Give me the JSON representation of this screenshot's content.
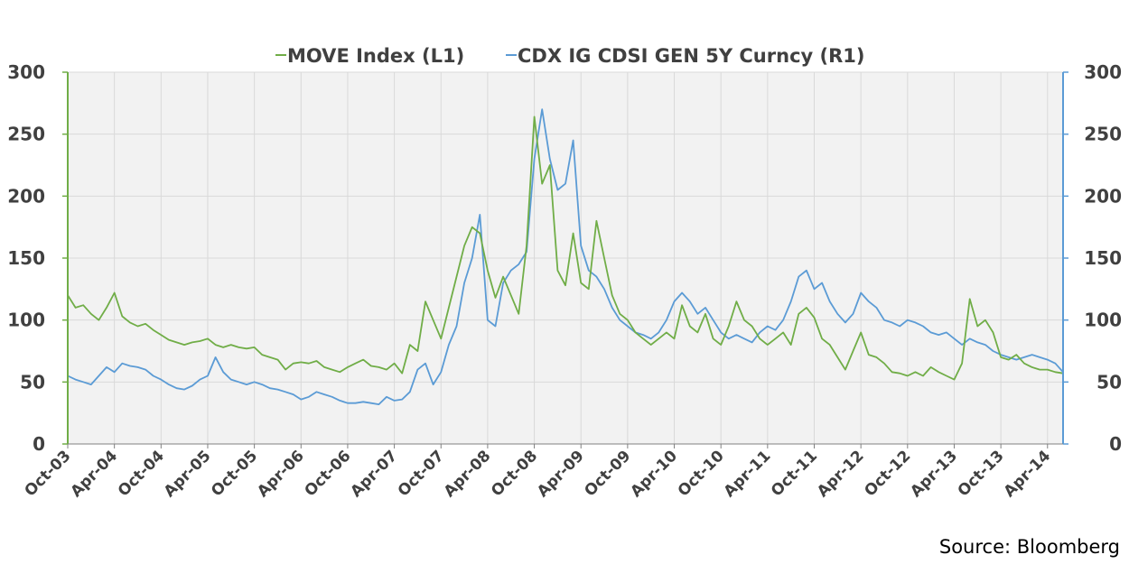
{
  "chart_data": {
    "type": "line",
    "title": "",
    "source": "Source: Bloomberg",
    "x_tick_labels": [
      "Oct-03",
      "Apr-04",
      "Oct-04",
      "Apr-05",
      "Oct-05",
      "Apr-06",
      "Oct-06",
      "Apr-07",
      "Oct-07",
      "Apr-08",
      "Oct-08",
      "Apr-09",
      "Oct-09",
      "Apr-10",
      "Oct-10",
      "Apr-11",
      "Oct-11",
      "Apr-12",
      "Oct-12",
      "Apr-13",
      "Oct-13",
      "Apr-14"
    ],
    "x_range": [
      "Oct-03",
      "Jun-14"
    ],
    "y_left": {
      "label": "",
      "lim": [
        0,
        300
      ],
      "ticks": [
        0,
        50,
        100,
        150,
        200,
        250,
        300
      ],
      "color": "#70ad47"
    },
    "y_right": {
      "label": "",
      "lim": [
        0,
        300
      ],
      "ticks": [
        0,
        50,
        100,
        150,
        200,
        250,
        300
      ],
      "color": "#5b9bd5"
    },
    "grid": true,
    "legend_position": "top-center",
    "colors": {
      "move": "#70ad47",
      "cdx": "#5b9bd5",
      "plot_bg": "#f2f2f2",
      "grid": "#d9d9d9"
    },
    "series": [
      {
        "name": "MOVE Index  (L1)",
        "axis": "left",
        "points": [
          [
            "Oct-03",
            120
          ],
          [
            "Nov-03",
            110
          ],
          [
            "Dec-03",
            112
          ],
          [
            "Jan-04",
            105
          ],
          [
            "Feb-04",
            100
          ],
          [
            "Mar-04",
            110
          ],
          [
            "Apr-04",
            122
          ],
          [
            "May-04",
            103
          ],
          [
            "Jun-04",
            98
          ],
          [
            "Jul-04",
            95
          ],
          [
            "Aug-04",
            97
          ],
          [
            "Sep-04",
            92
          ],
          [
            "Oct-04",
            88
          ],
          [
            "Nov-04",
            84
          ],
          [
            "Dec-04",
            82
          ],
          [
            "Jan-05",
            80
          ],
          [
            "Feb-05",
            82
          ],
          [
            "Mar-05",
            83
          ],
          [
            "Apr-05",
            85
          ],
          [
            "May-05",
            80
          ],
          [
            "Jun-05",
            78
          ],
          [
            "Jul-05",
            80
          ],
          [
            "Aug-05",
            78
          ],
          [
            "Sep-05",
            77
          ],
          [
            "Oct-05",
            78
          ],
          [
            "Nov-05",
            72
          ],
          [
            "Dec-05",
            70
          ],
          [
            "Jan-06",
            68
          ],
          [
            "Feb-06",
            60
          ],
          [
            "Mar-06",
            65
          ],
          [
            "Apr-06",
            66
          ],
          [
            "May-06",
            65
          ],
          [
            "Jun-06",
            67
          ],
          [
            "Jul-06",
            62
          ],
          [
            "Aug-06",
            60
          ],
          [
            "Sep-06",
            58
          ],
          [
            "Oct-06",
            62
          ],
          [
            "Nov-06",
            65
          ],
          [
            "Dec-06",
            68
          ],
          [
            "Jan-07",
            63
          ],
          [
            "Feb-07",
            62
          ],
          [
            "Mar-07",
            60
          ],
          [
            "Apr-07",
            65
          ],
          [
            "May-07",
            57
          ],
          [
            "Jun-07",
            80
          ],
          [
            "Jul-07",
            75
          ],
          [
            "Aug-07",
            115
          ],
          [
            "Sep-07",
            100
          ],
          [
            "Oct-07",
            85
          ],
          [
            "Nov-07",
            110
          ],
          [
            "Dec-07",
            135
          ],
          [
            "Jan-08",
            160
          ],
          [
            "Feb-08",
            175
          ],
          [
            "Mar-08",
            170
          ],
          [
            "Apr-08",
            140
          ],
          [
            "May-08",
            118
          ],
          [
            "Jun-08",
            135
          ],
          [
            "Jul-08",
            120
          ],
          [
            "Aug-08",
            105
          ],
          [
            "Sep-08",
            160
          ],
          [
            "Oct-08",
            264
          ],
          [
            "Nov-08",
            210
          ],
          [
            "Dec-08",
            225
          ],
          [
            "Jan-09",
            140
          ],
          [
            "Feb-09",
            128
          ],
          [
            "Mar-09",
            170
          ],
          [
            "Apr-09",
            130
          ],
          [
            "May-09",
            125
          ],
          [
            "Jun-09",
            180
          ],
          [
            "Jul-09",
            150
          ],
          [
            "Aug-09",
            120
          ],
          [
            "Sep-09",
            105
          ],
          [
            "Oct-09",
            100
          ],
          [
            "Nov-09",
            90
          ],
          [
            "Dec-09",
            85
          ],
          [
            "Jan-10",
            80
          ],
          [
            "Feb-10",
            85
          ],
          [
            "Mar-10",
            90
          ],
          [
            "Apr-10",
            85
          ],
          [
            "May-10",
            112
          ],
          [
            "Jun-10",
            95
          ],
          [
            "Jul-10",
            90
          ],
          [
            "Aug-10",
            105
          ],
          [
            "Sep-10",
            85
          ],
          [
            "Oct-10",
            80
          ],
          [
            "Nov-10",
            95
          ],
          [
            "Dec-10",
            115
          ],
          [
            "Jan-11",
            100
          ],
          [
            "Feb-11",
            95
          ],
          [
            "Mar-11",
            85
          ],
          [
            "Apr-11",
            80
          ],
          [
            "May-11",
            85
          ],
          [
            "Jun-11",
            90
          ],
          [
            "Jul-11",
            80
          ],
          [
            "Aug-11",
            105
          ],
          [
            "Sep-11",
            110
          ],
          [
            "Oct-11",
            102
          ],
          [
            "Nov-11",
            85
          ],
          [
            "Dec-11",
            80
          ],
          [
            "Jan-12",
            70
          ],
          [
            "Feb-12",
            60
          ],
          [
            "Mar-12",
            75
          ],
          [
            "Apr-12",
            90
          ],
          [
            "May-12",
            72
          ],
          [
            "Jun-12",
            70
          ],
          [
            "Jul-12",
            65
          ],
          [
            "Aug-12",
            58
          ],
          [
            "Sep-12",
            57
          ],
          [
            "Oct-12",
            55
          ],
          [
            "Nov-12",
            58
          ],
          [
            "Dec-12",
            55
          ],
          [
            "Jan-13",
            62
          ],
          [
            "Feb-13",
            58
          ],
          [
            "Mar-13",
            55
          ],
          [
            "Apr-13",
            52
          ],
          [
            "May-13",
            65
          ],
          [
            "Jun-13",
            117
          ],
          [
            "Jul-13",
            95
          ],
          [
            "Aug-13",
            100
          ],
          [
            "Sep-13",
            90
          ],
          [
            "Oct-13",
            70
          ],
          [
            "Nov-13",
            68
          ],
          [
            "Dec-13",
            72
          ],
          [
            "Jan-14",
            65
          ],
          [
            "Feb-14",
            62
          ],
          [
            "Mar-14",
            60
          ],
          [
            "Apr-14",
            60
          ],
          [
            "May-14",
            58
          ],
          [
            "Jun-14",
            57
          ]
        ]
      },
      {
        "name": "CDX IG CDSI GEN 5Y Curncy (R1)",
        "axis": "right",
        "points": [
          [
            "Oct-03",
            55
          ],
          [
            "Nov-03",
            52
          ],
          [
            "Dec-03",
            50
          ],
          [
            "Jan-04",
            48
          ],
          [
            "Feb-04",
            55
          ],
          [
            "Mar-04",
            62
          ],
          [
            "Apr-04",
            58
          ],
          [
            "May-04",
            65
          ],
          [
            "Jun-04",
            63
          ],
          [
            "Jul-04",
            62
          ],
          [
            "Aug-04",
            60
          ],
          [
            "Sep-04",
            55
          ],
          [
            "Oct-04",
            52
          ],
          [
            "Nov-04",
            48
          ],
          [
            "Dec-04",
            45
          ],
          [
            "Jan-05",
            44
          ],
          [
            "Feb-05",
            47
          ],
          [
            "Mar-05",
            52
          ],
          [
            "Apr-05",
            55
          ],
          [
            "May-05",
            70
          ],
          [
            "Jun-05",
            58
          ],
          [
            "Jul-05",
            52
          ],
          [
            "Aug-05",
            50
          ],
          [
            "Sep-05",
            48
          ],
          [
            "Oct-05",
            50
          ],
          [
            "Nov-05",
            48
          ],
          [
            "Dec-05",
            45
          ],
          [
            "Jan-06",
            44
          ],
          [
            "Feb-06",
            42
          ],
          [
            "Mar-06",
            40
          ],
          [
            "Apr-06",
            36
          ],
          [
            "May-06",
            38
          ],
          [
            "Jun-06",
            42
          ],
          [
            "Jul-06",
            40
          ],
          [
            "Aug-06",
            38
          ],
          [
            "Sep-06",
            35
          ],
          [
            "Oct-06",
            33
          ],
          [
            "Nov-06",
            33
          ],
          [
            "Dec-06",
            34
          ],
          [
            "Jan-07",
            33
          ],
          [
            "Feb-07",
            32
          ],
          [
            "Mar-07",
            38
          ],
          [
            "Apr-07",
            35
          ],
          [
            "May-07",
            36
          ],
          [
            "Jun-07",
            42
          ],
          [
            "Jul-07",
            60
          ],
          [
            "Aug-07",
            65
          ],
          [
            "Sep-07",
            48
          ],
          [
            "Oct-07",
            58
          ],
          [
            "Nov-07",
            80
          ],
          [
            "Dec-07",
            95
          ],
          [
            "Jan-08",
            130
          ],
          [
            "Feb-08",
            150
          ],
          [
            "Mar-08",
            185
          ],
          [
            "Apr-08",
            100
          ],
          [
            "May-08",
            95
          ],
          [
            "Jun-08",
            130
          ],
          [
            "Jul-08",
            140
          ],
          [
            "Aug-08",
            145
          ],
          [
            "Sep-08",
            155
          ],
          [
            "Oct-08",
            230
          ],
          [
            "Nov-08",
            270
          ],
          [
            "Dec-08",
            230
          ],
          [
            "Jan-09",
            205
          ],
          [
            "Feb-09",
            210
          ],
          [
            "Mar-09",
            245
          ],
          [
            "Apr-09",
            160
          ],
          [
            "May-09",
            140
          ],
          [
            "Jun-09",
            135
          ],
          [
            "Jul-09",
            125
          ],
          [
            "Aug-09",
            110
          ],
          [
            "Sep-09",
            100
          ],
          [
            "Oct-09",
            95
          ],
          [
            "Nov-09",
            90
          ],
          [
            "Dec-09",
            88
          ],
          [
            "Jan-10",
            85
          ],
          [
            "Feb-10",
            90
          ],
          [
            "Mar-10",
            100
          ],
          [
            "Apr-10",
            115
          ],
          [
            "May-10",
            122
          ],
          [
            "Jun-10",
            115
          ],
          [
            "Jul-10",
            105
          ],
          [
            "Aug-10",
            110
          ],
          [
            "Sep-10",
            100
          ],
          [
            "Oct-10",
            90
          ],
          [
            "Nov-10",
            85
          ],
          [
            "Dec-10",
            88
          ],
          [
            "Jan-11",
            85
          ],
          [
            "Feb-11",
            82
          ],
          [
            "Mar-11",
            90
          ],
          [
            "Apr-11",
            95
          ],
          [
            "May-11",
            92
          ],
          [
            "Jun-11",
            100
          ],
          [
            "Jul-11",
            115
          ],
          [
            "Aug-11",
            135
          ],
          [
            "Sep-11",
            140
          ],
          [
            "Oct-11",
            125
          ],
          [
            "Nov-11",
            130
          ],
          [
            "Dec-11",
            115
          ],
          [
            "Jan-12",
            105
          ],
          [
            "Feb-12",
            98
          ],
          [
            "Mar-12",
            105
          ],
          [
            "Apr-12",
            122
          ],
          [
            "May-12",
            115
          ],
          [
            "Jun-12",
            110
          ],
          [
            "Jul-12",
            100
          ],
          [
            "Aug-12",
            98
          ],
          [
            "Sep-12",
            95
          ],
          [
            "Oct-12",
            100
          ],
          [
            "Nov-12",
            98
          ],
          [
            "Dec-12",
            95
          ],
          [
            "Jan-13",
            90
          ],
          [
            "Feb-13",
            88
          ],
          [
            "Mar-13",
            90
          ],
          [
            "Apr-13",
            85
          ],
          [
            "May-13",
            80
          ],
          [
            "Jun-13",
            85
          ],
          [
            "Jul-13",
            82
          ],
          [
            "Aug-13",
            80
          ],
          [
            "Sep-13",
            75
          ],
          [
            "Oct-13",
            72
          ],
          [
            "Nov-13",
            70
          ],
          [
            "Dec-13",
            68
          ],
          [
            "Jan-14",
            70
          ],
          [
            "Feb-14",
            72
          ],
          [
            "Mar-14",
            70
          ],
          [
            "Apr-14",
            68
          ],
          [
            "May-14",
            65
          ],
          [
            "Jun-14",
            58
          ]
        ]
      }
    ]
  }
}
